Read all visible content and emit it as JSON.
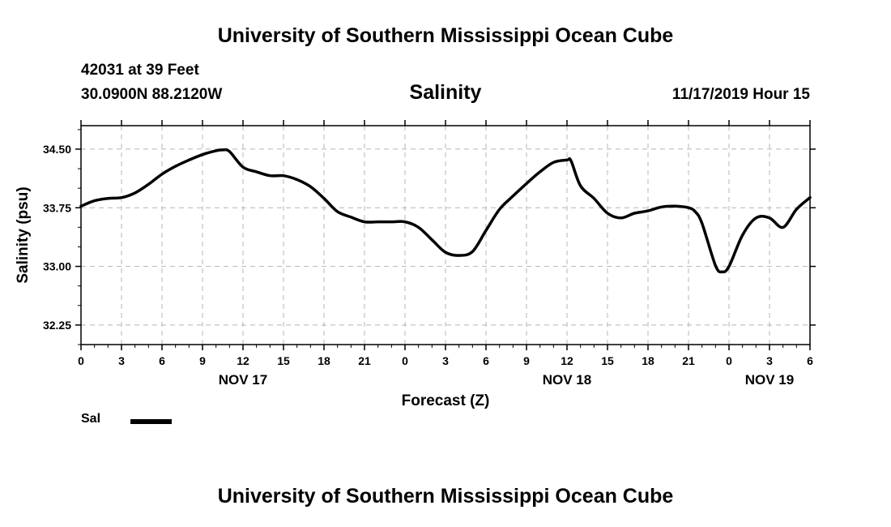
{
  "header": {
    "title": "University of Southern Mississippi Ocean Cube",
    "station": "42031 at 39 Feet",
    "coords": "30.0900N 88.2120W",
    "chart_title": "Salinity",
    "date": "11/17/2019 Hour 15"
  },
  "footer": {
    "title": "University of Southern Mississippi Ocean Cube"
  },
  "legend": {
    "label": "Sal",
    "color": "#000000"
  },
  "chart_data": {
    "type": "line",
    "title": "Salinity",
    "xlabel": "Forecast (Z)",
    "ylabel": "Salinity (psu)",
    "xlim": [
      0,
      54
    ],
    "ylim": [
      32.0,
      34.8
    ],
    "grid": true,
    "y_ticks": [
      32.25,
      33.0,
      33.75,
      34.5
    ],
    "y_tick_labels": [
      "32.25",
      "33.00",
      "33.75",
      "34.50"
    ],
    "x_ticks": [
      0,
      3,
      6,
      9,
      12,
      15,
      18,
      21,
      24,
      27,
      30,
      33,
      36,
      39,
      42,
      45,
      48,
      51,
      54
    ],
    "x_tick_labels": [
      "0",
      "3",
      "6",
      "9",
      "12",
      "15",
      "18",
      "21",
      "0",
      "3",
      "6",
      "9",
      "12",
      "15",
      "18",
      "21",
      "0",
      "3",
      "6"
    ],
    "date_labels": [
      {
        "x": 12,
        "label": "NOV 17"
      },
      {
        "x": 36,
        "label": "NOV 18"
      },
      {
        "x": 51,
        "label": "NOV 19"
      }
    ],
    "series": [
      {
        "name": "Sal",
        "x": [
          0,
          1,
          2,
          3,
          4,
          5,
          6,
          7,
          8,
          9,
          10,
          10.5,
          11,
          12,
          13,
          14,
          15,
          16,
          17,
          18,
          19,
          20,
          21,
          22,
          23,
          24,
          25,
          26,
          27,
          28,
          29,
          30,
          31,
          32,
          33,
          34,
          35,
          36,
          36.3,
          37,
          38,
          39,
          40,
          41,
          42,
          43,
          44,
          45,
          45.5,
          46,
          47,
          47.5,
          48,
          49,
          50,
          51,
          52,
          53,
          54
        ],
        "y": [
          33.77,
          33.84,
          33.87,
          33.88,
          33.94,
          34.05,
          34.18,
          34.28,
          34.36,
          34.43,
          34.48,
          34.49,
          34.47,
          34.27,
          34.21,
          34.16,
          34.16,
          34.11,
          34.02,
          33.87,
          33.7,
          33.63,
          33.57,
          33.57,
          33.57,
          33.57,
          33.5,
          33.34,
          33.18,
          33.14,
          33.19,
          33.46,
          33.73,
          33.9,
          34.06,
          34.21,
          34.33,
          34.36,
          34.35,
          34.03,
          33.87,
          33.68,
          33.62,
          33.68,
          33.71,
          33.76,
          33.77,
          33.75,
          33.7,
          33.55,
          33.01,
          32.93,
          33.0,
          33.4,
          33.62,
          33.62,
          33.5,
          33.73,
          33.88
        ]
      }
    ]
  }
}
